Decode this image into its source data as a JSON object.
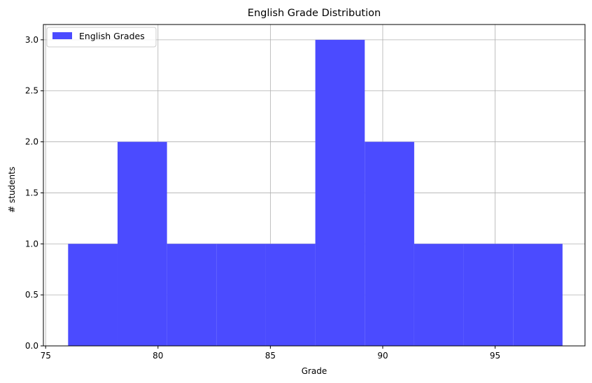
{
  "chart_data": {
    "type": "histogram",
    "title": "English Grade Distribution",
    "xlabel": "Grade",
    "ylabel": "# students",
    "xlim": [
      74.9,
      99.0
    ],
    "ylim": [
      0,
      3.15
    ],
    "xticks": [
      75,
      80,
      85,
      90,
      95
    ],
    "yticks": [
      0.0,
      0.5,
      1.0,
      1.5,
      2.0,
      2.5,
      3.0
    ],
    "bin_edges": [
      76.0,
      78.2,
      80.4,
      82.6,
      84.8,
      87.0,
      89.2,
      91.4,
      93.6,
      95.8,
      98.0
    ],
    "counts": [
      1,
      2,
      1,
      1,
      1,
      3,
      2,
      1,
      1,
      1
    ],
    "series": [
      {
        "name": "English Grades",
        "color": "#4b4bff"
      }
    ],
    "grid": true,
    "legend_position": "top-left"
  }
}
